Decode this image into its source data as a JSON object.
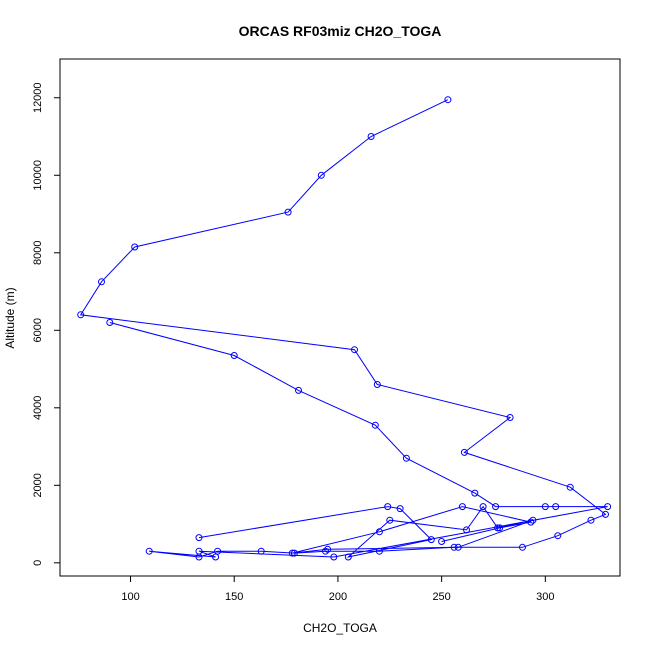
{
  "chart_data": {
    "type": "line",
    "title": "ORCAS RF03miz CH2O_TOGA",
    "xlabel": "CH2O_TOGA",
    "ylabel": "Altitude (m)",
    "xlim": [
      66,
      336
    ],
    "ylim": [
      -340,
      13000
    ],
    "xticks": [
      100,
      150,
      200,
      250,
      300
    ],
    "yticks": [
      0,
      2000,
      4000,
      6000,
      8000,
      10000,
      12000
    ],
    "grid": false,
    "legend": "none",
    "series": [
      {
        "color": "#0000ff",
        "marker": "open-circle",
        "x": [
          253,
          216,
          192,
          176,
          102,
          86,
          76,
          208,
          219,
          283,
          261,
          312,
          329,
          322,
          306,
          289,
          256,
          220,
          194,
          179,
          163,
          142,
          133,
          109,
          141,
          133,
          198,
          330,
          300,
          305,
          276,
          266,
          233,
          218,
          181,
          150,
          90
        ],
        "y": [
          11950,
          11000,
          10000,
          9050,
          8150,
          7250,
          6400,
          5500,
          4600,
          3750,
          2850,
          1950,
          1250,
          1100,
          700,
          400,
          400,
          300,
          300,
          250,
          300,
          300,
          150,
          300,
          150,
          300,
          150,
          1450,
          1450,
          1450,
          1450,
          1800,
          2700,
          3550,
          4450,
          5350,
          6200
        ]
      },
      {
        "color": "#0000ff",
        "marker": "open-circle",
        "x": [
          133,
          224,
          230,
          245,
          205,
          225,
          262,
          270,
          277,
          294,
          258,
          195,
          178,
          220,
          260,
          293,
          278,
          250
        ],
        "y": [
          650,
          1450,
          1400,
          600,
          150,
          1100,
          850,
          1450,
          900,
          1100,
          400,
          350,
          250,
          800,
          1450,
          1050,
          900,
          550
        ]
      }
    ]
  }
}
